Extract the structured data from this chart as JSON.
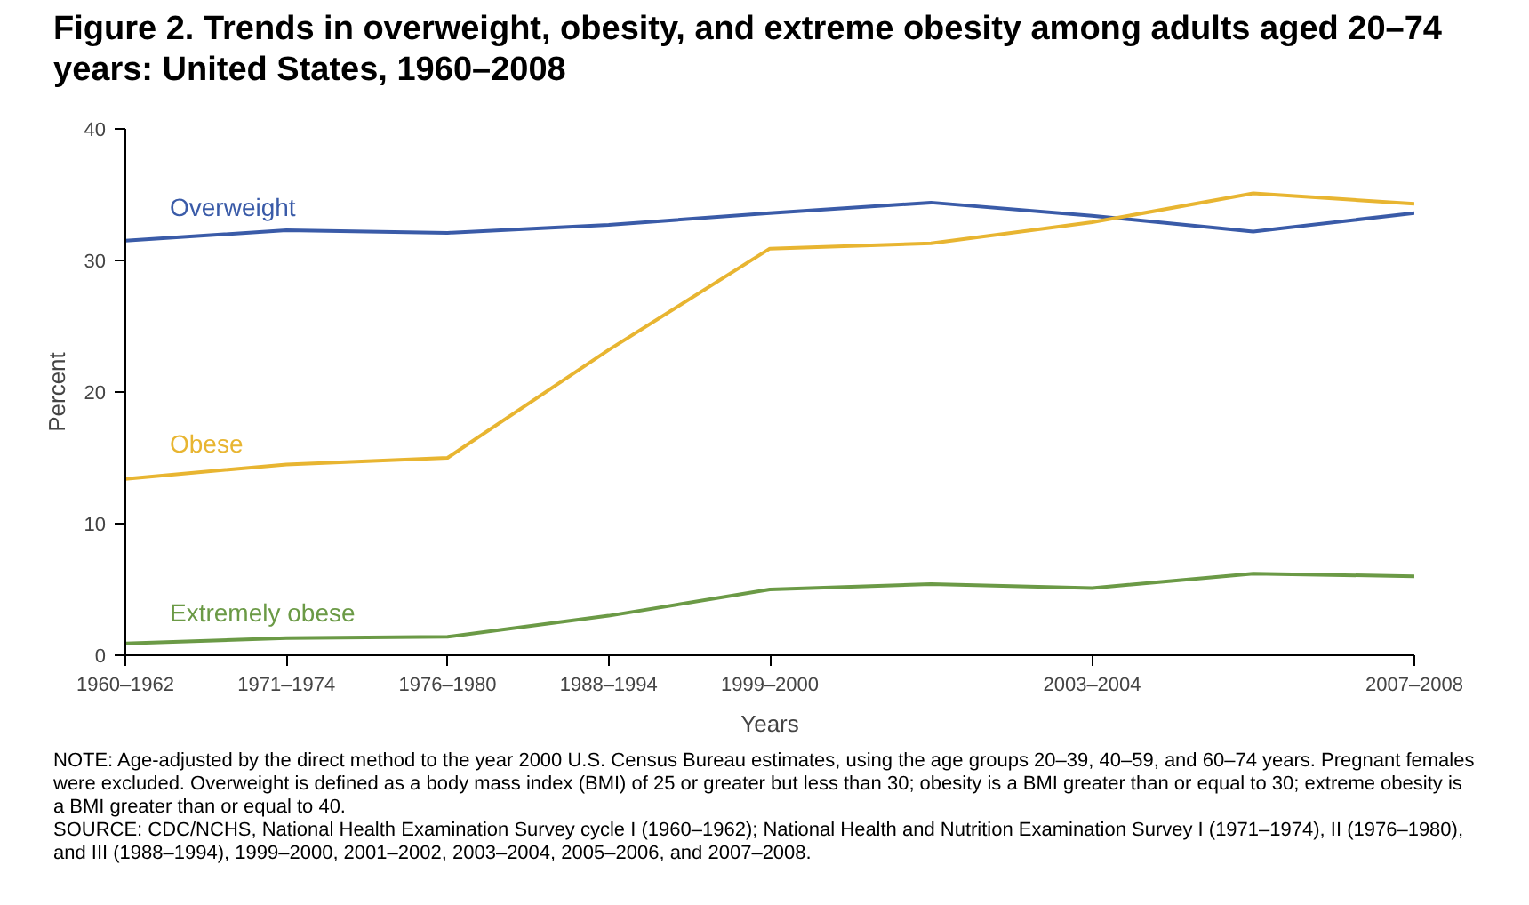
{
  "chart_data": {
    "type": "line",
    "title": "Figure 2. Trends in overweight, obesity, and extreme obesity among adults aged 20–74 years: United States, 1960–2008",
    "xlabel": "Years",
    "ylabel": "Percent",
    "categories": [
      "1960–1962",
      "1971–1974",
      "1976–1980",
      "1988–1994",
      "1999–2000",
      null,
      "2003–2004",
      null,
      "2007–2008"
    ],
    "series": [
      {
        "name": "Overweight",
        "color": "#3a5ba8",
        "values": [
          31.5,
          32.3,
          32.1,
          32.7,
          33.6,
          34.4,
          33.4,
          32.2,
          33.6
        ]
      },
      {
        "name": "Obese",
        "color": "#e8b531",
        "values": [
          13.4,
          14.5,
          15.0,
          23.2,
          30.9,
          31.3,
          32.9,
          35.1,
          34.3
        ]
      },
      {
        "name": "Extremely obese",
        "color": "#6b9a46",
        "values": [
          0.9,
          1.3,
          1.4,
          3.0,
          5.0,
          5.4,
          5.1,
          6.2,
          6.0
        ]
      }
    ],
    "ylim": [
      0,
      40
    ],
    "yticks": [
      0,
      10,
      20,
      30,
      40
    ],
    "grid": false,
    "marker": "none",
    "line_style": "solid",
    "annotations": [
      "NOTE: Age-adjusted by the direct method to the year 2000 U.S. Census Bureau estimates, using the age groups 20–39, 40–59, and 60–74 years. Pregnant females were excluded. Overweight is defined as a body mass index (BMI) of 25 or greater but less than 30; obesity is a BMI greater than or equal to 30; extreme obesity is a BMI greater than or equal to 40.",
      "SOURCE: CDC/NCHS, National Health Examination Survey cycle I (1960–1962); National Health and Nutrition Examination Survey I (1971–1974), II (1976–1980), and III (1988–1994), 1999–2000, 2001–2002, 2003–2004, 2005–2006, and 2007–2008."
    ]
  }
}
